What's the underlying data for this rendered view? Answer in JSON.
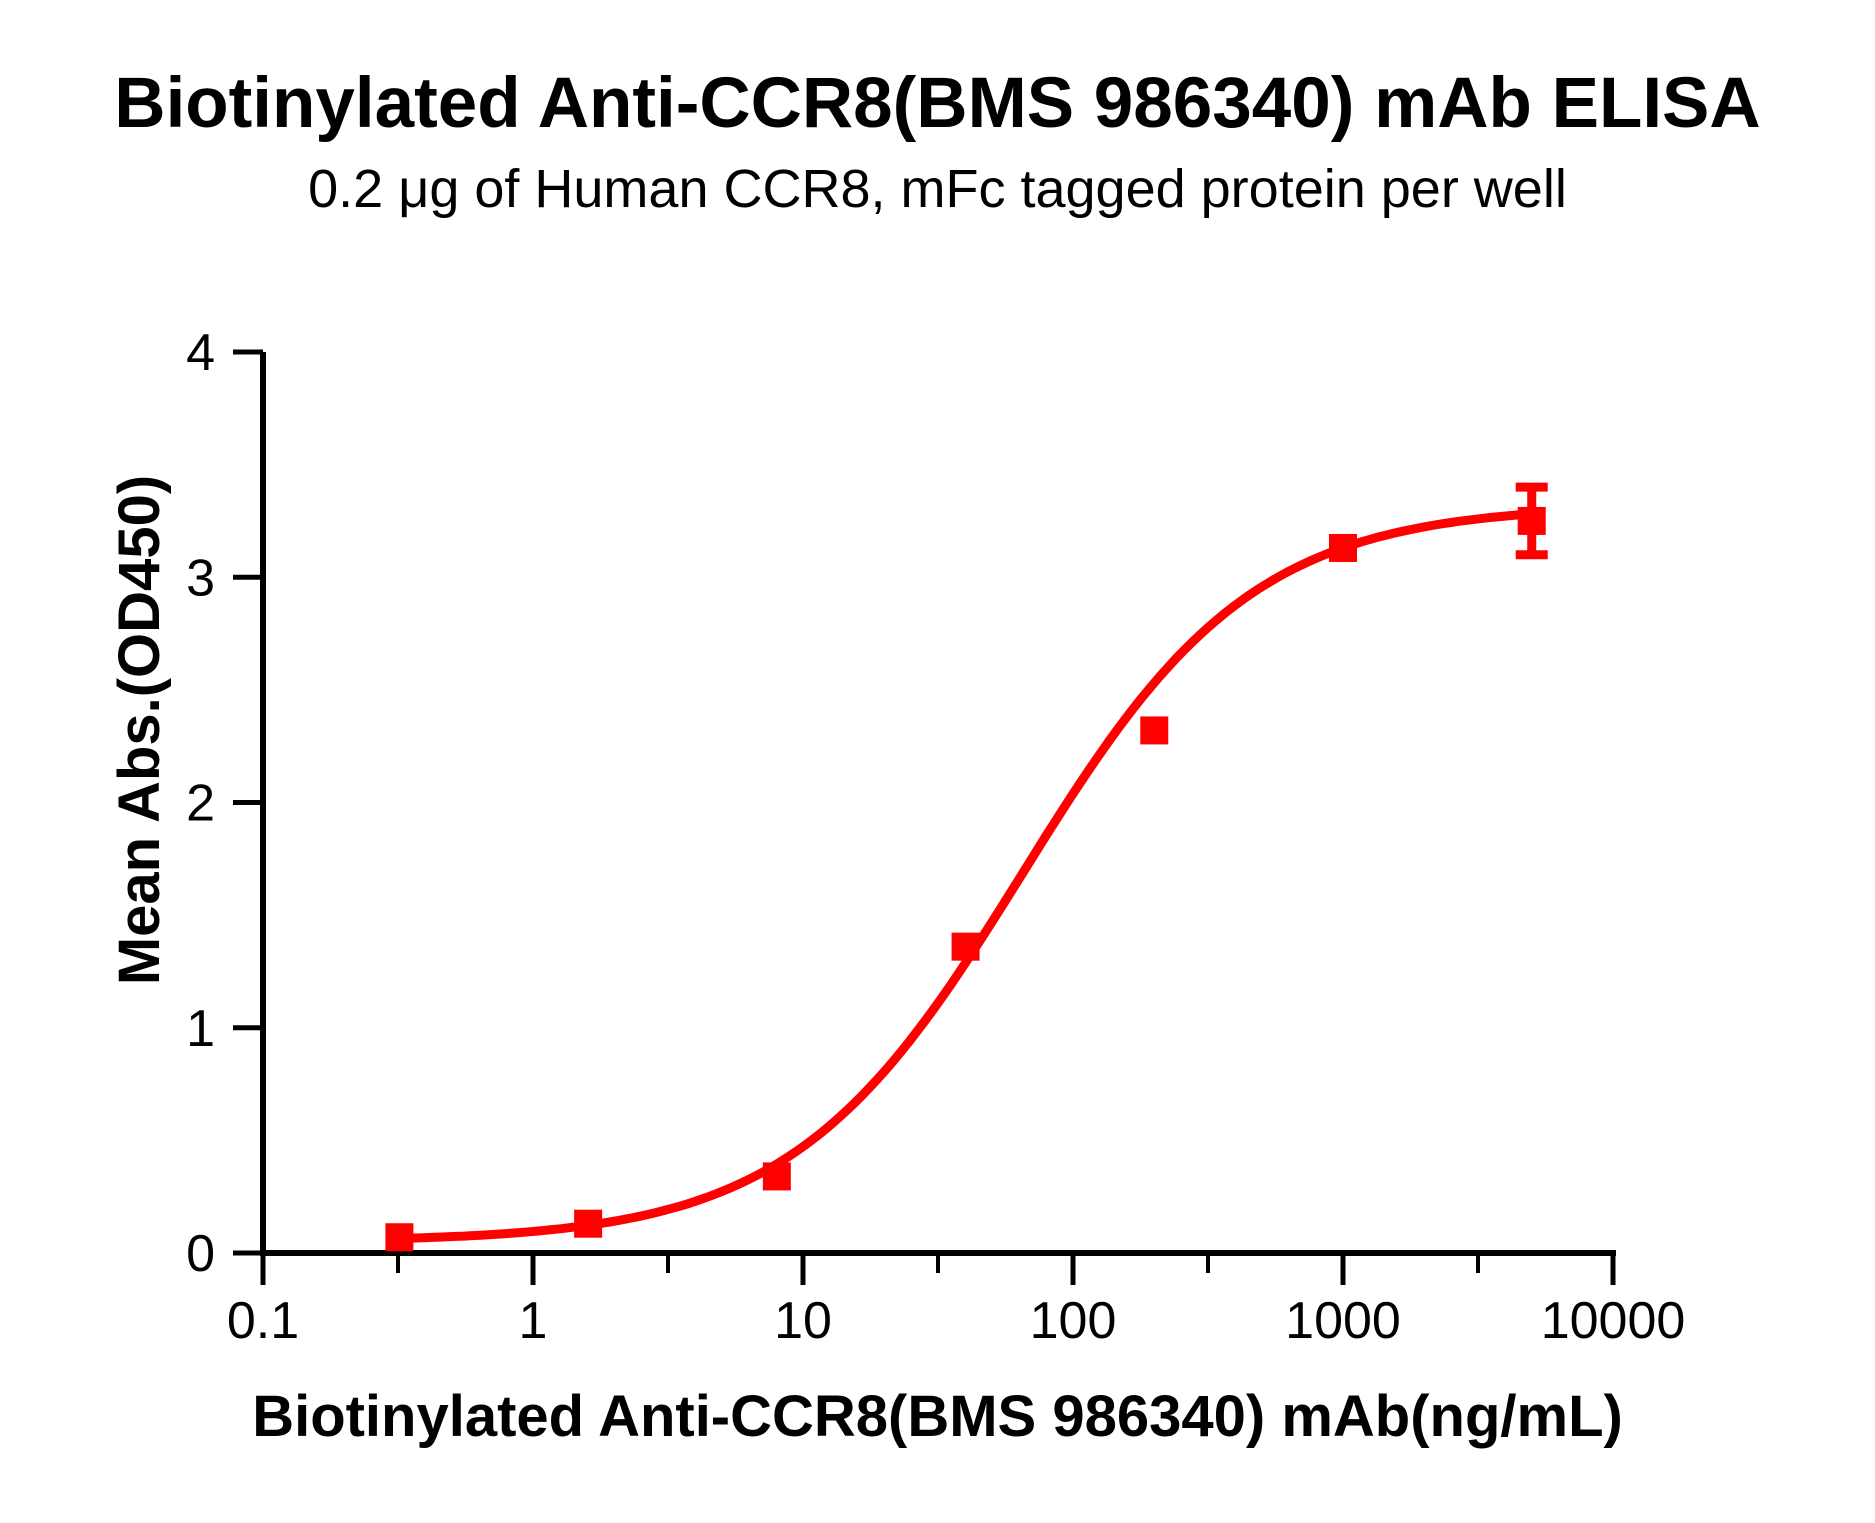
{
  "page": {
    "background": "#ffffff"
  },
  "header": {
    "title": "Biotinylated Anti-CCR8(BMS 986340) mAb ELISA",
    "subtitle": "0.2 μg of Human CCR8, mFc tagged protein per well"
  },
  "chart_data": {
    "type": "scatter",
    "title": "Biotinylated Anti-CCR8(BMS 986340) mAb ELISA",
    "subtitle": "0.2 μg of Human CCR8, mFc tagged protein per well",
    "xlabel": "Biotinylated Anti-CCR8(BMS 986340) mAb(ng/mL)",
    "ylabel": "Mean Abs.(OD450)",
    "x_scale": "log10",
    "xlim": [
      0.1,
      10000
    ],
    "ylim": [
      0,
      4
    ],
    "x_ticks": [
      0.1,
      1,
      10,
      100,
      1000,
      10000
    ],
    "x_tick_labels": [
      "0.1",
      "1",
      "10",
      "100",
      "1000",
      "10000"
    ],
    "x_minor_ticks": [
      0.3162,
      3.162,
      31.62,
      316.2,
      3162
    ],
    "y_ticks": [
      0,
      1,
      2,
      3,
      4
    ],
    "y_tick_labels": [
      "0",
      "1",
      "2",
      "3",
      "4"
    ],
    "grid": false,
    "legend": null,
    "series_name": "Biotinylated Anti-CCR8(BMS 986340) mAb",
    "points": [
      {
        "x": 0.32,
        "y": 0.07,
        "err": 0
      },
      {
        "x": 1.6,
        "y": 0.13,
        "err": 0
      },
      {
        "x": 8,
        "y": 0.34,
        "err": 0
      },
      {
        "x": 40,
        "y": 1.36,
        "err": 0
      },
      {
        "x": 200,
        "y": 2.32,
        "err": 0
      },
      {
        "x": 1000,
        "y": 3.13,
        "err": 0
      },
      {
        "x": 5000,
        "y": 3.25,
        "err": 0.15
      }
    ],
    "fit_curve": {
      "model": "4PL",
      "bottom": 0.05,
      "top": 3.32,
      "ec50": 65,
      "hill": 1.02,
      "x_start": 0.32,
      "x_end": 5000
    },
    "marker": {
      "shape": "square",
      "size": 28,
      "color": "#FF0000"
    },
    "line_color": "#FF0000",
    "axis_color": "#000000"
  }
}
